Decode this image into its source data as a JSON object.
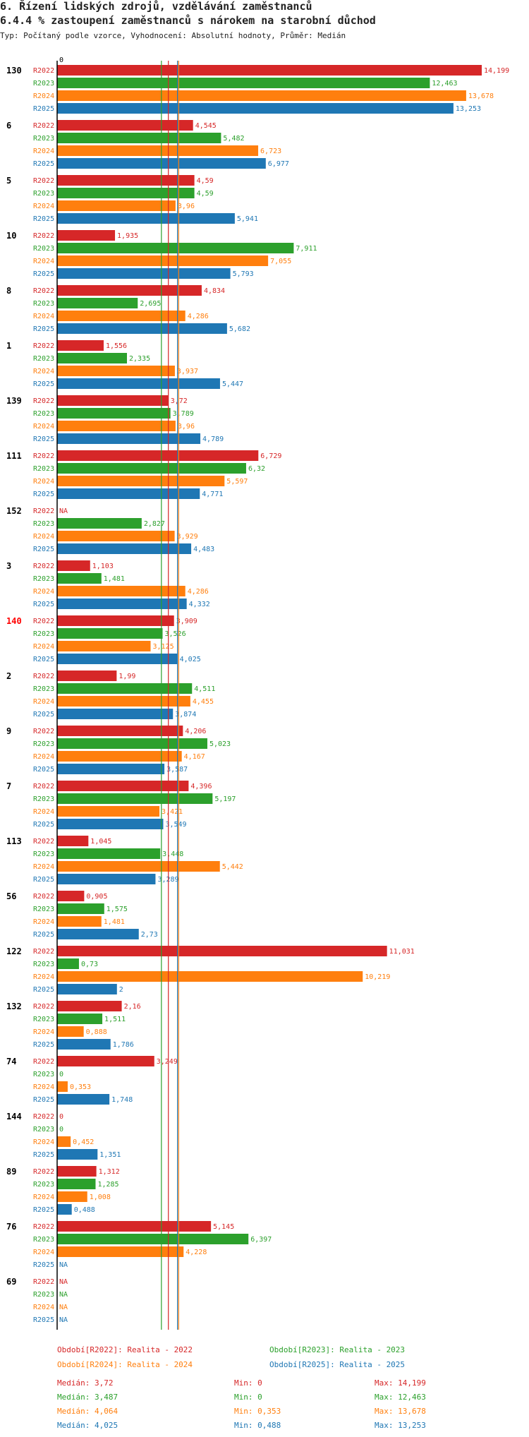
{
  "header": {
    "title": "6. Řízení lidských zdrojů, vzdělávání zaměstnanců",
    "subtitle": "6.4.4 % zastoupení zaměstnanců s nárokem na starobní důchod",
    "meta": "Typ: Počítaný podle vzorce, Vyhodnocení: Absolutní hodnoty, Průměr: Medián"
  },
  "colors": {
    "R2022": "#d62728",
    "R2023": "#2ca02c",
    "R2024": "#ff7f0e",
    "R2025": "#1f77b4",
    "axis": "#000000",
    "highlight_group": "#ff0000"
  },
  "chart_data": {
    "type": "bar",
    "orientation": "horizontal",
    "axis_zero_label": "0",
    "series": [
      "R2022",
      "R2023",
      "R2024",
      "R2025"
    ],
    "xlim": [
      0,
      14.199
    ],
    "highlighted_group": "140",
    "groups": [
      {
        "id": "130",
        "values": [
          "14,199",
          "12,463",
          "13,678",
          "13,253"
        ]
      },
      {
        "id": "6",
        "values": [
          "4,545",
          "5,482",
          "6,723",
          "6,977"
        ]
      },
      {
        "id": "5",
        "values": [
          "4,59",
          "4,59",
          "3,96",
          "5,941"
        ]
      },
      {
        "id": "10",
        "values": [
          "1,935",
          "7,911",
          "7,055",
          "5,793"
        ]
      },
      {
        "id": "8",
        "values": [
          "4,834",
          "2,695",
          "4,286",
          "5,682"
        ]
      },
      {
        "id": "1",
        "values": [
          "1,556",
          "2,335",
          "3,937",
          "5,447"
        ]
      },
      {
        "id": "139",
        "values": [
          "3,72",
          "3,789",
          "3,96",
          "4,789"
        ]
      },
      {
        "id": "111",
        "values": [
          "6,729",
          "6,32",
          "5,597",
          "4,771"
        ]
      },
      {
        "id": "152",
        "values": [
          "NA",
          "2,827",
          "3,929",
          "4,483"
        ]
      },
      {
        "id": "3",
        "values": [
          "1,103",
          "1,481",
          "4,286",
          "4,332"
        ]
      },
      {
        "id": "140",
        "values": [
          "3,909",
          "3,526",
          "3,125",
          "4,025"
        ]
      },
      {
        "id": "2",
        "values": [
          "1,99",
          "4,511",
          "4,455",
          "3,874"
        ]
      },
      {
        "id": "9",
        "values": [
          "4,206",
          "5,023",
          "4,167",
          "3,587"
        ]
      },
      {
        "id": "7",
        "values": [
          "4,396",
          "5,197",
          "3,421",
          "3,549"
        ]
      },
      {
        "id": "113",
        "values": [
          "1,045",
          "3,448",
          "5,442",
          "3,289"
        ]
      },
      {
        "id": "56",
        "values": [
          "0,905",
          "1,575",
          "1,481",
          "2,73"
        ]
      },
      {
        "id": "122",
        "values": [
          "11,031",
          "0,73",
          "10,219",
          "2"
        ]
      },
      {
        "id": "132",
        "values": [
          "2,16",
          "1,511",
          "0,888",
          "1,786"
        ]
      },
      {
        "id": "74",
        "values": [
          "3,249",
          "0",
          "0,353",
          "1,748"
        ]
      },
      {
        "id": "144",
        "values": [
          "0",
          "0",
          "0,452",
          "1,351"
        ]
      },
      {
        "id": "89",
        "values": [
          "1,312",
          "1,285",
          "1,008",
          "0,488"
        ]
      },
      {
        "id": "76",
        "values": [
          "5,145",
          "6,397",
          "4,228",
          "NA"
        ]
      },
      {
        "id": "69",
        "values": [
          "NA",
          "NA",
          "NA",
          "NA"
        ]
      }
    ],
    "median_lines": [
      {
        "series": "R2022",
        "value": 3.72
      },
      {
        "series": "R2023",
        "value": 3.487
      },
      {
        "series": "R2024",
        "value": 4.064
      },
      {
        "series": "R2025",
        "value": 4.025
      }
    ],
    "legend": [
      {
        "series": "R2022",
        "label": "Období[R2022]: Realita - 2022"
      },
      {
        "series": "R2023",
        "label": "Období[R2023]: Realita - 2023"
      },
      {
        "series": "R2024",
        "label": "Období[R2024]: Realita - 2024"
      },
      {
        "series": "R2025",
        "label": "Období[R2025]: Realita - 2025"
      }
    ],
    "stats": [
      {
        "series": "R2022",
        "median": "Medián: 3,72",
        "min": "Min: 0",
        "max": "Max: 14,199"
      },
      {
        "series": "R2023",
        "median": "Medián: 3,487",
        "min": "Min: 0",
        "max": "Max: 12,463"
      },
      {
        "series": "R2024",
        "median": "Medián: 4,064",
        "min": "Min: 0,353",
        "max": "Max: 13,678"
      },
      {
        "series": "R2025",
        "median": "Medián: 4,025",
        "min": "Min: 0,488",
        "max": "Max: 13,253"
      }
    ]
  }
}
